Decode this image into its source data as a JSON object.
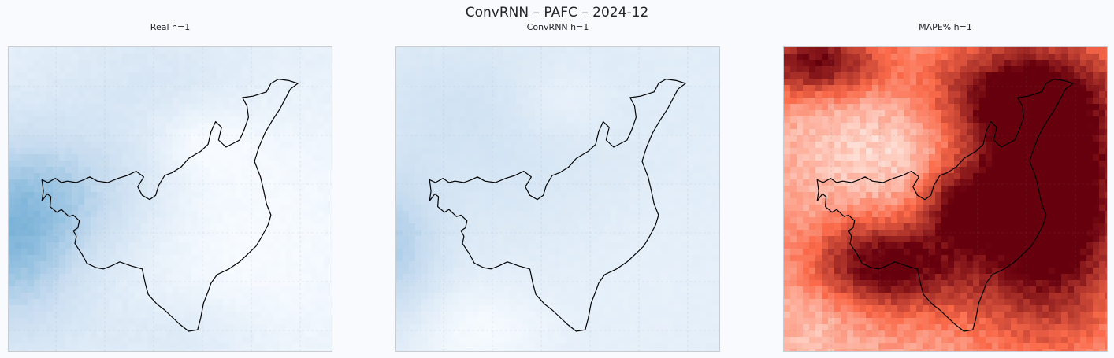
{
  "figure": {
    "title": "ConvRNN – PAFC – 2024-12"
  },
  "panels": [
    {
      "title": "Real h=1",
      "colormap": "Blues",
      "colors": [
        "#f7fbff",
        "#c6dbef",
        "#4a98c9"
      ]
    },
    {
      "title": "ConvRNN h=1",
      "colormap": "Blues",
      "colors": [
        "#f7fbff",
        "#c6dbef",
        "#4a98c9"
      ]
    },
    {
      "title": "MAPE% h=1",
      "colormap": "Reds",
      "colors": [
        "#fff5f0",
        "#fb6a4a",
        "#67000d"
      ]
    }
  ],
  "region_outline": "Antioquia department boundary"
}
